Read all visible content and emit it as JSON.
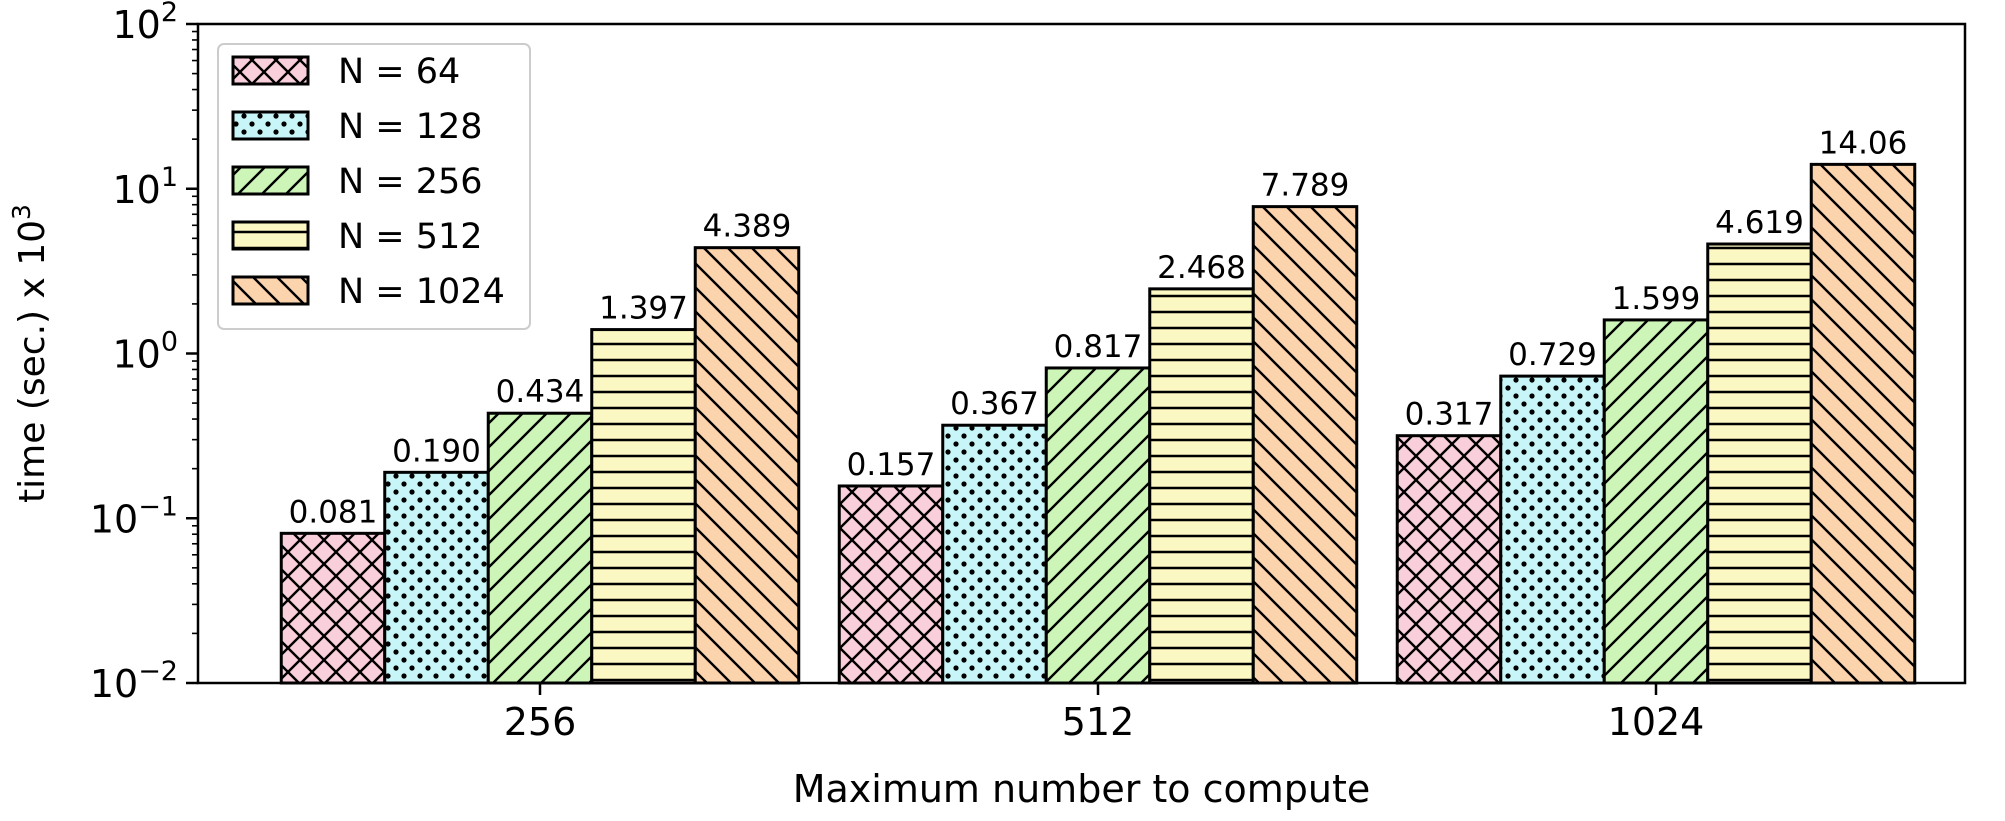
{
  "chart_data": {
    "type": "bar",
    "title": "",
    "xlabel": "Maximum number to compute",
    "ylabel_main": "time (sec.) x 10",
    "ylabel_exp": "3",
    "yscale": "log",
    "ylim": [
      0.01,
      100
    ],
    "yticks": [
      {
        "value": 0.01,
        "base": "10",
        "exp": "−2"
      },
      {
        "value": 0.1,
        "base": "10",
        "exp": "−1"
      },
      {
        "value": 1,
        "base": "10",
        "exp": "0"
      },
      {
        "value": 10,
        "base": "10",
        "exp": "1"
      },
      {
        "value": 100,
        "base": "10",
        "exp": "2"
      }
    ],
    "categories": [
      "256",
      "512",
      "1024"
    ],
    "legend_position": "top-left",
    "grid": false,
    "series": [
      {
        "name": "N = 64",
        "color": "#f9cfdb",
        "hatch": "cross",
        "values": [
          0.081,
          0.157,
          0.317
        ],
        "labels": [
          "0.081",
          "0.157",
          "0.317"
        ]
      },
      {
        "name": "N = 128",
        "color": "#c8f5f7",
        "hatch": "dots",
        "values": [
          0.19,
          0.367,
          0.729
        ],
        "labels": [
          "0.190",
          "0.367",
          "0.729"
        ]
      },
      {
        "name": "N = 256",
        "color": "#cdf5b8",
        "hatch": "diag-right",
        "values": [
          0.434,
          0.817,
          1.599
        ],
        "labels": [
          "0.434",
          "0.817",
          "1.599"
        ]
      },
      {
        "name": "N = 512",
        "color": "#fcf8c4",
        "hatch": "horizontal",
        "values": [
          1.397,
          2.468,
          4.619
        ],
        "labels": [
          "1.397",
          "2.468",
          "4.619"
        ]
      },
      {
        "name": "N = 1024",
        "color": "#fbd3ad",
        "hatch": "diag-left",
        "values": [
          4.389,
          7.789,
          14.06
        ],
        "labels": [
          "4.389",
          "7.789",
          "14.06"
        ]
      }
    ]
  }
}
